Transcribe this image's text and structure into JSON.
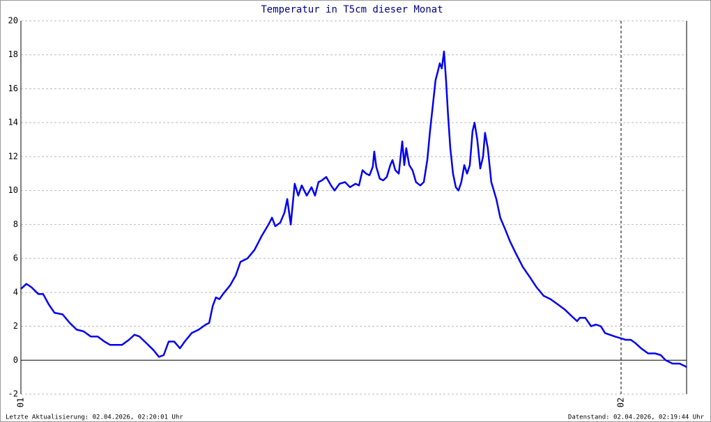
{
  "chart_data": {
    "type": "line",
    "title": "Temperatur in T5cm dieser Monat",
    "x": [
      0,
      0.22,
      0.42,
      0.7,
      0.89,
      1.11,
      1.34,
      1.67,
      1.95,
      2.23,
      2.51,
      2.79,
      3.07,
      3.34,
      3.57,
      3.76,
      4.04,
      4.32,
      4.54,
      4.74,
      5.02,
      5.3,
      5.52,
      5.71,
      5.91,
      6.13,
      6.36,
      6.55,
      6.83,
      7.11,
      7.39,
      7.53,
      7.67,
      7.8,
      7.94,
      8.08,
      8.36,
      8.59,
      8.78,
      9.06,
      9.34,
      9.62,
      9.9,
      10.04,
      10.17,
      10.37,
      10.54,
      10.65,
      10.79,
      10.95,
      11.09,
      11.23,
      11.43,
      11.62,
      11.76,
      11.9,
      12.04,
      12.21,
      12.4,
      12.54,
      12.74,
      12.96,
      13.16,
      13.38,
      13.52,
      13.66,
      13.8,
      13.94,
      14.07,
      14.13,
      14.21,
      14.35,
      14.49,
      14.63,
      14.77,
      14.86,
      14.97,
      15.11,
      15.25,
      15.33,
      15.41,
      15.53,
      15.66,
      15.8,
      15.97,
      16.11,
      16.25,
      16.36,
      16.47,
      16.58,
      16.67,
      16.75,
      16.83,
      16.92,
      17.0,
      17.08,
      17.17,
      17.28,
      17.39,
      17.5,
      17.61,
      17.73,
      17.84,
      17.95,
      18.06,
      18.14,
      18.25,
      18.37,
      18.48,
      18.56,
      18.67,
      18.81,
      19.01,
      19.17,
      19.37,
      19.56,
      19.79,
      20.07,
      20.35,
      20.62,
      20.9,
      21.18,
      21.46,
      21.74,
      22.02,
      22.24,
      22.35,
      22.57,
      22.8,
      22.99,
      23.19,
      23.36,
      23.55,
      23.75,
      23.97,
      24.19,
      24.39,
      24.58,
      24.8,
      25.08,
      25.36,
      25.59,
      25.78,
      26.06,
      26.34,
      26.62
    ],
    "series": [
      {
        "color": "#0000ee",
        "values": [
          4.2,
          4.5,
          4.3,
          3.9,
          3.9,
          3.3,
          2.8,
          2.7,
          2.2,
          1.8,
          1.7,
          1.4,
          1.4,
          1.1,
          0.9,
          0.9,
          0.9,
          1.2,
          1.5,
          1.4,
          1.0,
          0.6,
          0.2,
          0.3,
          1.1,
          1.1,
          0.7,
          1.1,
          1.6,
          1.8,
          2.1,
          2.2,
          3.2,
          3.7,
          3.6,
          3.9,
          4.4,
          5.0,
          5.8,
          6.0,
          6.5,
          7.3,
          8.0,
          8.4,
          7.9,
          8.1,
          8.7,
          9.5,
          8.0,
          10.4,
          9.7,
          10.3,
          9.7,
          10.2,
          9.7,
          10.5,
          10.6,
          10.8,
          10.3,
          10.0,
          10.4,
          10.5,
          10.2,
          10.4,
          10.3,
          11.2,
          11.0,
          10.9,
          11.4,
          12.3,
          11.4,
          10.7,
          10.6,
          10.8,
          11.5,
          11.8,
          11.2,
          11.0,
          12.9,
          11.5,
          12.5,
          11.5,
          11.2,
          10.5,
          10.3,
          10.5,
          11.8,
          13.5,
          15.0,
          16.5,
          17.0,
          17.5,
          17.2,
          18.2,
          16.5,
          14.5,
          12.5,
          11.0,
          10.2,
          10.0,
          10.5,
          11.5,
          11.0,
          11.5,
          13.5,
          14.0,
          13.0,
          11.3,
          12.0,
          13.4,
          12.5,
          10.5,
          9.5,
          8.4,
          7.7,
          7.0,
          6.3,
          5.5,
          4.9,
          4.3,
          3.8,
          3.6,
          3.3,
          3.0,
          2.6,
          2.3,
          2.5,
          2.5,
          2.0,
          2.1,
          2.0,
          1.6,
          1.5,
          1.4,
          1.3,
          1.2,
          1.2,
          1.0,
          0.7,
          0.4,
          0.4,
          0.3,
          0.0,
          -0.2,
          -0.2,
          -0.4
        ]
      }
    ],
    "xlim": [
      0,
      26.62
    ],
    "xticks": [
      {
        "value": 0,
        "label": "01"
      },
      {
        "value": 24,
        "label": "02"
      }
    ],
    "ylim": [
      -2,
      20
    ],
    "yticks": [
      -2,
      0,
      2,
      4,
      6,
      8,
      10,
      12,
      14,
      16,
      18,
      20
    ],
    "grid": true
  },
  "footer": {
    "left": "Letzte Aktualisierung: 02.04.2026, 02:20:01 Uhr",
    "right": "Datenstand: 02.04.2026, 02:19:44 Uhr"
  }
}
